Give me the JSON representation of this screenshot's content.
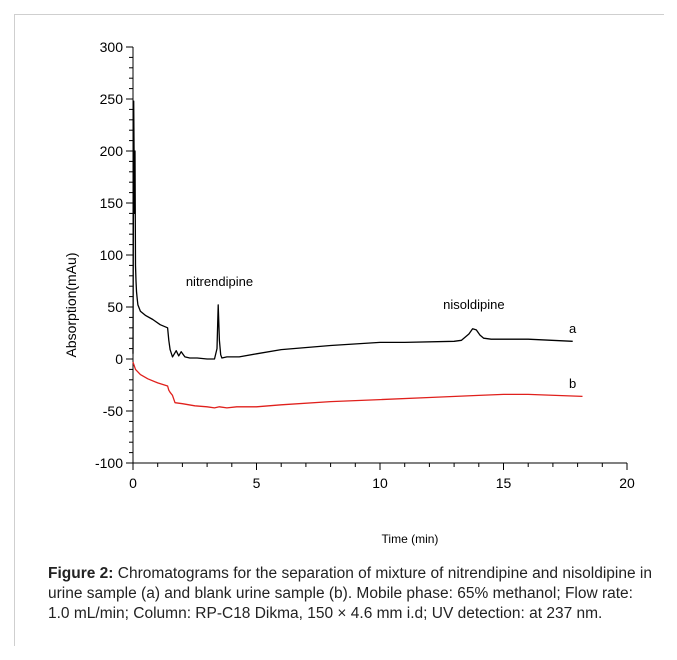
{
  "chart_data": {
    "type": "line",
    "xlabel": "Time (min)",
    "ylabel": "Absorption(mAu)",
    "xlim": [
      0,
      20
    ],
    "ylim": [
      -100,
      300
    ],
    "x_ticks": [
      0,
      5,
      10,
      15,
      20
    ],
    "y_ticks": [
      -100,
      -50,
      0,
      50,
      100,
      150,
      200,
      250,
      300
    ],
    "grid": false,
    "series": [
      {
        "name": "a",
        "color": "#000000",
        "x": [
          0,
          0.03,
          0.06,
          0.08,
          0.1,
          0.12,
          0.14,
          0.17,
          0.2,
          0.3,
          0.5,
          0.8,
          1.1,
          1.4,
          1.45,
          1.5,
          1.6,
          1.75,
          1.85,
          1.95,
          2.1,
          2.3,
          2.6,
          3.0,
          3.3,
          3.4,
          3.45,
          3.5,
          3.55,
          3.6,
          3.8,
          4.3,
          5.0,
          6.0,
          8.0,
          10.0,
          11.0,
          13.0,
          13.3,
          13.6,
          13.75,
          13.9,
          14.05,
          14.2,
          14.5,
          16.0,
          17.8
        ],
        "y": [
          5,
          248,
          140,
          200,
          90,
          75,
          65,
          58,
          52,
          46,
          42,
          38,
          33,
          30,
          18,
          9,
          2,
          8,
          3,
          7,
          2,
          1,
          1,
          0,
          0,
          10,
          52,
          18,
          4,
          1,
          2,
          2,
          5,
          9,
          13,
          16,
          16,
          17,
          18,
          24,
          29,
          28,
          23,
          20,
          19,
          19,
          17
        ]
      },
      {
        "name": "b",
        "color": "#e0201c",
        "x": [
          0,
          0.1,
          0.3,
          0.6,
          1.0,
          1.4,
          1.45,
          1.5,
          1.6,
          1.7,
          2.0,
          2.5,
          3.0,
          3.3,
          3.5,
          3.8,
          4.2,
          5.0,
          6.0,
          8.0,
          10.0,
          12.0,
          14.0,
          15.0,
          16.0,
          18.2
        ],
        "y": [
          -3,
          -10,
          -15,
          -19,
          -23,
          -26,
          -30,
          -32,
          -35,
          -42,
          -43,
          -45,
          -46,
          -47,
          -46,
          -47,
          -46,
          -46,
          -44,
          -41,
          -39,
          -37,
          -35,
          -34,
          -34,
          -36
        ]
      }
    ],
    "annotations": [
      {
        "text": "nitrendipine",
        "x": 3.5,
        "y": 70
      },
      {
        "text": "nisoldipine",
        "x": 13.8,
        "y": 48
      },
      {
        "text": "a",
        "x": 17.8,
        "y": 25
      },
      {
        "text": "b",
        "x": 17.8,
        "y": -28
      }
    ]
  },
  "caption": {
    "label": "Figure 2:",
    "text": "Chromatograms for the separation of mixture of nitrendipine and nisoldipine in urine sample (a) and blank urine sample (b). Mobile phase: 65% methanol; Flow rate: 1.0 mL/min; Column: RP-C18 Dikma, 150 × 4.6 mm i.d; UV detection: at 237 nm."
  }
}
